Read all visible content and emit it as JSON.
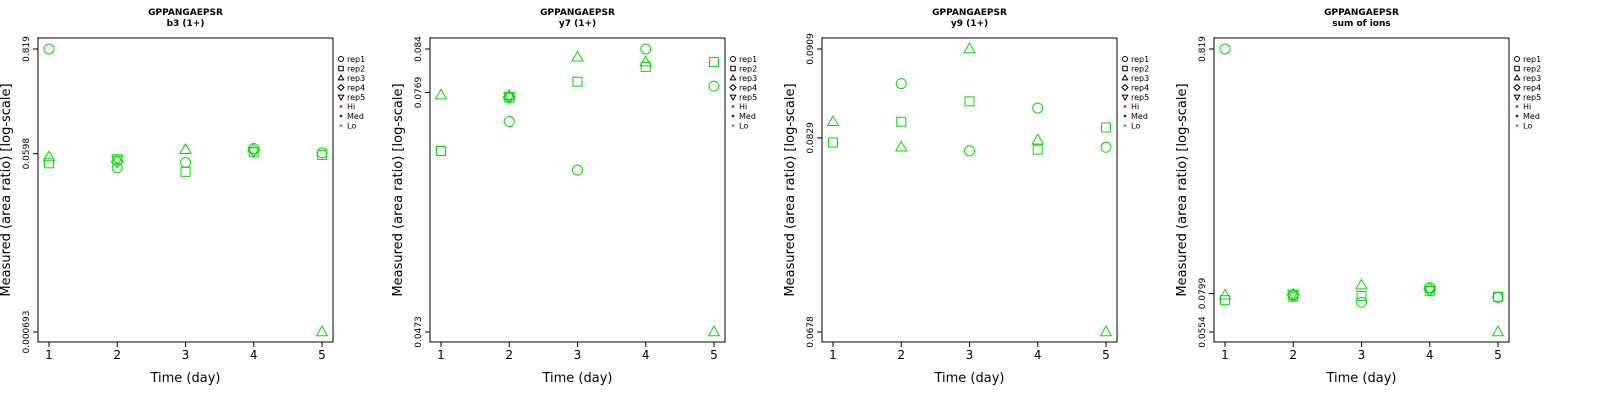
{
  "chart_data": [
    {
      "type": "scatter",
      "title": "GPPANGAEPSR",
      "subtitle": "b3 (1+)",
      "xlabel": "Time (day)",
      "ylabel": "Measured (area ratio) [log-scale]",
      "x_ticks": [
        1,
        2,
        3,
        4,
        5
      ],
      "y_scale": "log",
      "y_ticks": [
        {
          "value": 0.819,
          "label": "0.819"
        },
        {
          "value": 0.0598,
          "label": "0.0598"
        },
        {
          "value": 0.000693,
          "label": "0.000693"
        }
      ],
      "y_range": [
        0.000693,
        0.819
      ],
      "legend": {
        "position": "right",
        "entries": [
          "rep1",
          "rep2",
          "rep3",
          "rep4",
          "rep5",
          "Hi",
          "Med",
          "Lo"
        ]
      },
      "series": [
        {
          "name": "rep1",
          "x": [
            1,
            2,
            3,
            4,
            5
          ],
          "y": [
            0.819,
            0.042,
            0.048,
            0.068,
            0.061
          ]
        },
        {
          "name": "rep2",
          "x": [
            1,
            2,
            3,
            4,
            5
          ],
          "y": [
            0.047,
            0.052,
            0.038,
            0.062,
            0.058
          ]
        },
        {
          "name": "rep3",
          "x": [
            1,
            3,
            5
          ],
          "y": [
            0.055,
            0.066,
            0.000693
          ]
        },
        {
          "name": "rep4",
          "x": [
            2,
            4
          ],
          "y": [
            0.049,
            0.065
          ]
        },
        {
          "name": "rep5",
          "x": [
            2,
            4
          ],
          "y": [
            0.051,
            0.063
          ]
        }
      ]
    },
    {
      "type": "scatter",
      "title": "GPPANGAEPSR",
      "subtitle": "y7 (1+)",
      "xlabel": "Time (day)",
      "ylabel": "Measured (area ratio) [log-scale]",
      "x_ticks": [
        1,
        2,
        3,
        4,
        5
      ],
      "y_scale": "log",
      "y_ticks": [
        {
          "value": 0.084,
          "label": "0.084"
        },
        {
          "value": 0.0769,
          "label": "0.0769"
        },
        {
          "value": 0.0473,
          "label": "0.0473"
        }
      ],
      "y_range": [
        0.0473,
        0.084
      ],
      "legend": {
        "position": "right",
        "entries": [
          "rep1",
          "rep2",
          "rep3",
          "rep4",
          "rep5",
          "Hi",
          "Med",
          "Lo"
        ]
      },
      "series": [
        {
          "name": "rep1",
          "x": [
            2,
            3,
            4,
            5
          ],
          "y": [
            0.0725,
            0.0657,
            0.084,
            0.0779
          ]
        },
        {
          "name": "rep2",
          "x": [
            1,
            2,
            3,
            4,
            5
          ],
          "y": [
            0.0683,
            0.0761,
            0.0786,
            0.081,
            0.0818
          ]
        },
        {
          "name": "rep3",
          "x": [
            1,
            2,
            3,
            4,
            5
          ],
          "y": [
            0.0765,
            0.0764,
            0.0826,
            0.0818,
            0.0473
          ]
        },
        {
          "name": "rep4",
          "x": [
            2
          ],
          "y": [
            0.0762
          ]
        },
        {
          "name": "rep5",
          "x": [
            2
          ],
          "y": [
            0.0763
          ]
        }
      ]
    },
    {
      "type": "scatter",
      "title": "GPPANGAEPSR",
      "subtitle": "y9 (1+)",
      "xlabel": "Time (day)",
      "ylabel": "Measured (area ratio) [log-scale]",
      "x_ticks": [
        1,
        2,
        3,
        4,
        5
      ],
      "y_scale": "log",
      "y_ticks": [
        {
          "value": 0.0909,
          "label": "0.0909"
        },
        {
          "value": 0.0829,
          "label": "0.0829"
        },
        {
          "value": 0.0678,
          "label": "0.0678"
        }
      ],
      "y_range": [
        0.0678,
        0.0909
      ],
      "legend": {
        "position": "right",
        "entries": [
          "rep1",
          "rep2",
          "rep3",
          "rep4",
          "rep5",
          "Hi",
          "Med",
          "Lo"
        ]
      },
      "series": [
        {
          "name": "rep1",
          "x": [
            2,
            3,
            4,
            5
          ],
          "y": [
            0.0877,
            0.0818,
            0.0855,
            0.0821
          ]
        },
        {
          "name": "rep2",
          "x": [
            1,
            2,
            3,
            4,
            5
          ],
          "y": [
            0.0825,
            0.0843,
            0.0861,
            0.0819,
            0.0838
          ]
        },
        {
          "name": "rep3",
          "x": [
            1,
            2,
            3,
            4,
            5
          ],
          "y": [
            0.0843,
            0.0821,
            0.0909,
            0.0827,
            0.0678
          ]
        }
      ]
    },
    {
      "type": "scatter",
      "title": "GPPANGAEPSR",
      "subtitle": "sum of ions",
      "xlabel": "Time (day)",
      "ylabel": "Measured (area ratio) [log-scale]",
      "x_ticks": [
        1,
        2,
        3,
        4,
        5
      ],
      "y_scale": "log",
      "y_ticks": [
        {
          "value": 0.819,
          "label": "0.819"
        },
        {
          "value": 0.0799,
          "label": "0.0799"
        },
        {
          "value": 0.0554,
          "label": "0.0554"
        }
      ],
      "y_range": [
        0.0554,
        0.819
      ],
      "legend": {
        "position": "right",
        "entries": [
          "rep1",
          "rep2",
          "rep3",
          "rep4",
          "rep5",
          "Hi",
          "Med",
          "Lo"
        ]
      },
      "series": [
        {
          "name": "rep1",
          "x": [
            1,
            2,
            3,
            4,
            5
          ],
          "y": [
            0.819,
            0.0785,
            0.0735,
            0.0845,
            0.077
          ]
        },
        {
          "name": "rep2",
          "x": [
            1,
            2,
            3,
            4,
            5
          ],
          "y": [
            0.075,
            0.0775,
            0.078,
            0.082,
            0.0775
          ]
        },
        {
          "name": "rep3",
          "x": [
            1,
            3,
            5
          ],
          "y": [
            0.0785,
            0.0865,
            0.0554
          ]
        },
        {
          "name": "rep4",
          "x": [
            2,
            4
          ],
          "y": [
            0.079,
            0.083
          ]
        },
        {
          "name": "rep5",
          "x": [
            2,
            4
          ],
          "y": [
            0.0795,
            0.0825
          ]
        }
      ]
    }
  ],
  "legend_style": {
    "rep_marker_color": "#000000",
    "point_color": "#00dd00",
    "group_colors": {
      "Hi": "#ff0000",
      "Med": "#0000ff",
      "Lo": "#00dd00"
    },
    "shapes": {
      "rep1": "circle",
      "rep2": "square",
      "rep3": "triangle-up",
      "rep4": "diamond",
      "rep5": "triangle-down"
    }
  }
}
